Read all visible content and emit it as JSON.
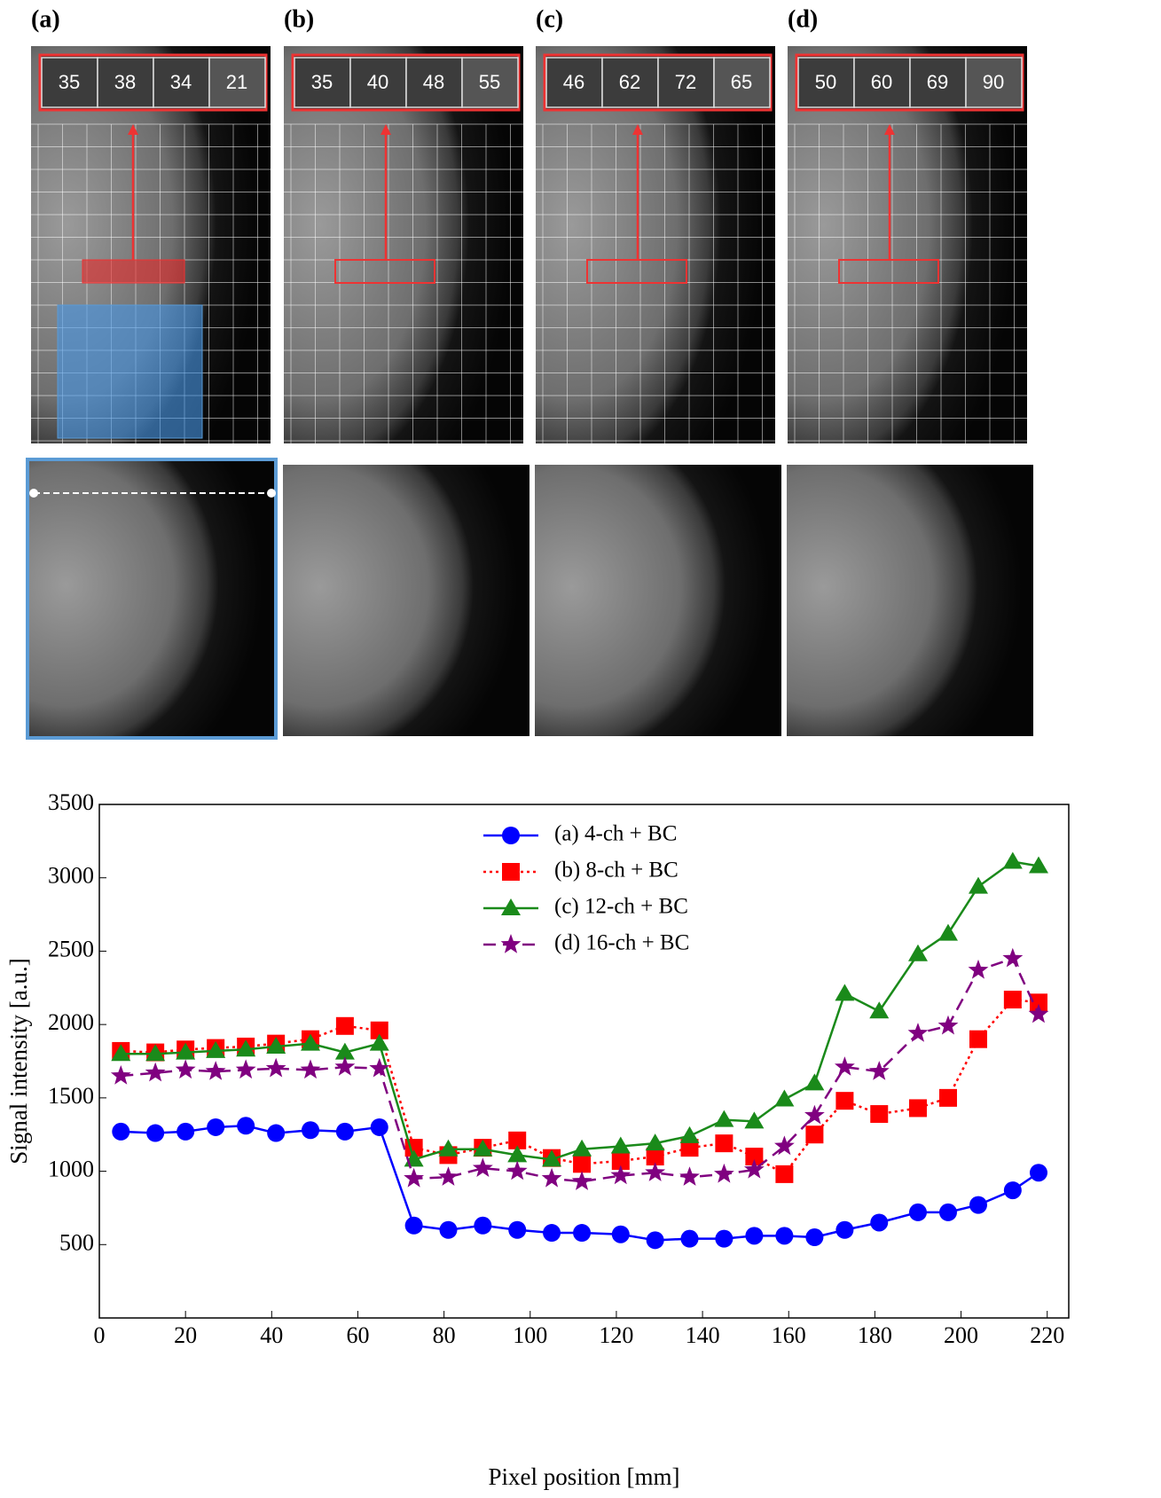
{
  "panels": [
    {
      "label": "(a)",
      "zoom_values": [
        35,
        38,
        34,
        21
      ]
    },
    {
      "label": "(b)",
      "zoom_values": [
        35,
        40,
        48,
        55
      ]
    },
    {
      "label": "(c)",
      "zoom_values": [
        46,
        62,
        72,
        65
      ]
    },
    {
      "label": "(d)",
      "zoom_values": [
        50,
        60,
        69,
        90
      ]
    }
  ],
  "chart_data": {
    "type": "line",
    "x_label": "Pixel position [mm]",
    "y_label": "Signal intensity [a.u.]",
    "x": [
      5,
      13,
      20,
      27,
      34,
      41,
      49,
      57,
      65,
      73,
      81,
      89,
      97,
      105,
      112,
      121,
      129,
      137,
      145,
      152,
      159,
      166,
      173,
      181,
      190,
      197,
      204,
      212,
      218
    ],
    "series": [
      {
        "name": "(a) 4-ch + BC",
        "color": "#0000ff",
        "line_style": "solid",
        "marker": "circle",
        "values": [
          1270,
          1260,
          1270,
          1300,
          1310,
          1260,
          1280,
          1270,
          1300,
          630,
          600,
          630,
          600,
          580,
          580,
          570,
          530,
          540,
          540,
          560,
          560,
          550,
          600,
          650,
          720,
          720,
          770,
          870,
          990
        ]
      },
      {
        "name": "(b) 8-ch + BC",
        "color": "#ff0000",
        "line_style": "dotted",
        "marker": "square",
        "values": [
          1820,
          1810,
          1830,
          1840,
          1850,
          1870,
          1900,
          1990,
          1960,
          1160,
          1110,
          1160,
          1210,
          1090,
          1050,
          1070,
          1100,
          1160,
          1190,
          1100,
          980,
          1250,
          1480,
          1390,
          1430,
          1500,
          1900,
          2170,
          2150
        ]
      },
      {
        "name": "(c) 12-ch + BC",
        "color": "#1a8a1a",
        "line_style": "solid",
        "marker": "triangle",
        "values": [
          1800,
          1800,
          1810,
          1820,
          1830,
          1850,
          1870,
          1810,
          1870,
          1080,
          1150,
          1150,
          1110,
          1080,
          1150,
          1170,
          1190,
          1240,
          1350,
          1340,
          1490,
          1600,
          2210,
          2090,
          2480,
          2620,
          2940,
          3110,
          3080
        ]
      },
      {
        "name": "(d) 16-ch + BC",
        "color": "#800080",
        "line_style": "dashed",
        "marker": "star",
        "values": [
          1650,
          1670,
          1690,
          1680,
          1690,
          1700,
          1690,
          1710,
          1700,
          950,
          960,
          1020,
          1000,
          950,
          930,
          970,
          990,
          960,
          980,
          1010,
          1170,
          1380,
          1710,
          1680,
          1940,
          1990,
          2370,
          2450,
          2070
        ]
      }
    ],
    "xlim": [
      0,
      225
    ],
    "xticks": [
      0,
      20,
      40,
      60,
      80,
      100,
      120,
      140,
      160,
      180,
      200,
      220
    ],
    "ylim": [
      0,
      3500
    ],
    "yticks": [
      500,
      1000,
      1500,
      2000,
      2500,
      3000,
      3500
    ],
    "legend": "upper center"
  }
}
